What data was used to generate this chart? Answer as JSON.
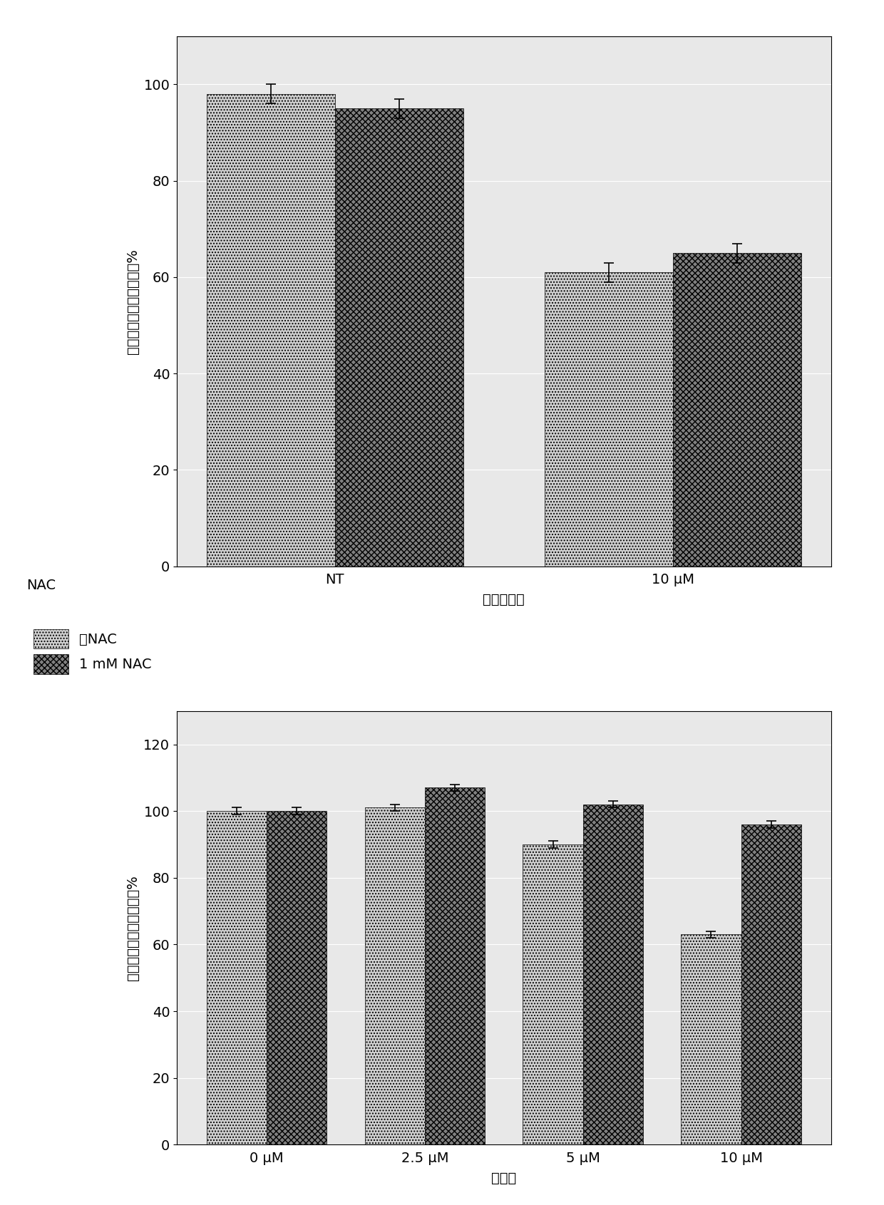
{
  "chart1": {
    "groups": [
      "NT",
      "10 μM"
    ],
    "bar1_values": [
      98,
      61
    ],
    "bar2_values": [
      95,
      65
    ],
    "bar1_errors": [
      2,
      2
    ],
    "bar2_errors": [
      2,
      2
    ],
    "ylabel": "谷胱甘肽，相对于对照的%",
    "xlabel": "测试化合物",
    "ylim": [
      0,
      110
    ],
    "yticks": [
      0,
      20,
      40,
      60,
      80,
      100
    ],
    "legend_title": "NAC",
    "legend_labels": [
      "无NAC",
      "1 mM NAC"
    ]
  },
  "chart2": {
    "groups": [
      "0 μM",
      "2.5 μM",
      "5 μM",
      "10 μM"
    ],
    "bar1_values": [
      100,
      101,
      90,
      63
    ],
    "bar2_values": [
      100,
      107,
      102,
      96
    ],
    "bar1_errors": [
      1,
      1,
      1,
      1
    ],
    "bar2_errors": [
      1,
      1,
      1,
      1
    ],
    "ylabel": "谷胱甘肽，相对于对照的%",
    "xlabel": "甲萸醜",
    "ylim": [
      0,
      130
    ],
    "yticks": [
      0,
      20,
      40,
      60,
      80,
      100,
      120
    ]
  },
  "bar1_color": "#d0d0d0",
  "bar2_color": "#808080",
  "bar1_hatch": "....",
  "bar2_hatch": "xxxx",
  "bar_width": 0.38,
  "figure_bg": "#ffffff",
  "font_size": 14,
  "ax_facecolor": "#e8e8e8"
}
